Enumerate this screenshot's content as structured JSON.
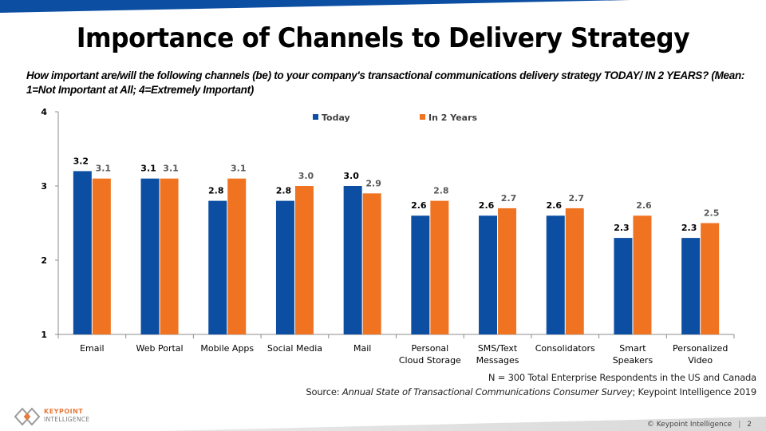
{
  "slide": {
    "title": "Importance of Channels to Delivery Strategy",
    "question": "How important are/will the following channels (be) to your company's transactional communications delivery strategy TODAY/ IN 2 YEARS? (Mean: 1=Not Important at All; 4=Extremely Important)",
    "sample_note": "N = 300 Total Enterprise Respondents in the US and Canada",
    "source_prefix": "Source: ",
    "source_title": "Annual State of Transactional Communications Consumer Survey",
    "source_suffix": "; Keypoint Intelligence 2019",
    "copyright": "© Keypoint Intelligence",
    "separator": "|",
    "page_number": "2"
  },
  "logo": {
    "line1": "KEYPOINT",
    "line2": "INTELLIGENCE"
  },
  "colors": {
    "brand_blue": "#0B4EA2",
    "brand_orange": "#F07322",
    "today_label": "#000000",
    "future_label": "#595959"
  },
  "chart_data": {
    "type": "bar",
    "title": "Importance of Channels to Delivery Strategy",
    "xlabel": "",
    "ylabel": "",
    "ylim": [
      1,
      4
    ],
    "yticks": [
      1,
      2,
      3,
      4
    ],
    "grid": false,
    "legend_position": "top-center",
    "categories": [
      [
        "Email"
      ],
      [
        "Web Portal"
      ],
      [
        "Mobile Apps"
      ],
      [
        "Social Media"
      ],
      [
        "Mail"
      ],
      [
        "Personal",
        "Cloud Storage"
      ],
      [
        "SMS/Text",
        "Messages"
      ],
      [
        "Consolidators"
      ],
      [
        "Smart",
        "Speakers"
      ],
      [
        "Personalized",
        "Video"
      ]
    ],
    "series": [
      {
        "name": "Today",
        "color": "#0B4EA2",
        "values": [
          3.2,
          3.1,
          2.8,
          2.8,
          3.0,
          2.6,
          2.6,
          2.6,
          2.3,
          2.3
        ]
      },
      {
        "name": "In 2 Years",
        "color": "#F07322",
        "values": [
          3.1,
          3.1,
          3.1,
          3.0,
          2.9,
          2.8,
          2.7,
          2.7,
          2.6,
          2.5
        ]
      }
    ]
  }
}
